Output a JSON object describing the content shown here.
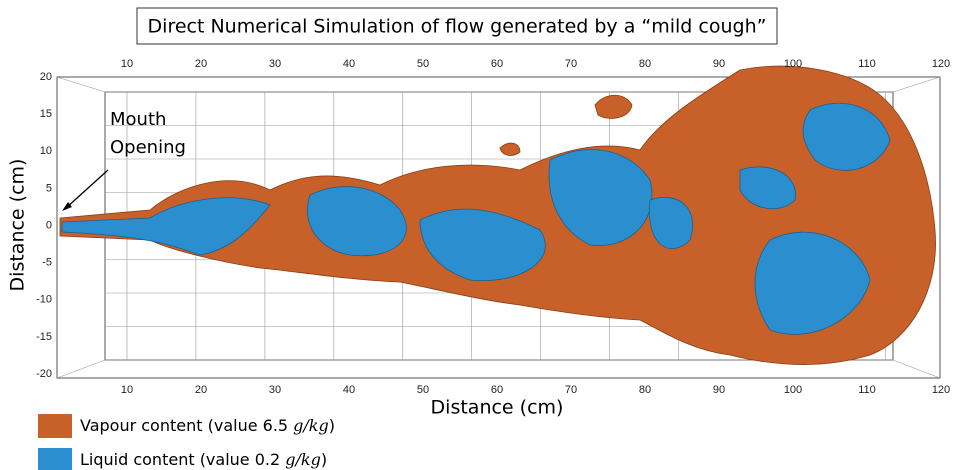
{
  "title": "Direct Numerical Simulation of flow generated by a “mild cough”",
  "x_axis": {
    "label": "Distance (cm)",
    "ticks": [
      10,
      20,
      30,
      40,
      50,
      60,
      70,
      80,
      90,
      100,
      110,
      120
    ]
  },
  "y_axis": {
    "label": "Distance (cm)",
    "ticks": [
      20,
      15,
      10,
      5,
      0,
      -5,
      -10,
      -15,
      -20
    ]
  },
  "annotation": [
    "Mouth",
    "Opening"
  ],
  "legend": [
    {
      "text": "Vapour content (value 6.5 ",
      "unit": "g/kg",
      "close": ")",
      "color": "#c8602a"
    },
    {
      "text": "Liquid content (value 0.2 ",
      "unit": "g/kg",
      "close": ")",
      "color": "#2b8fcf"
    }
  ]
}
